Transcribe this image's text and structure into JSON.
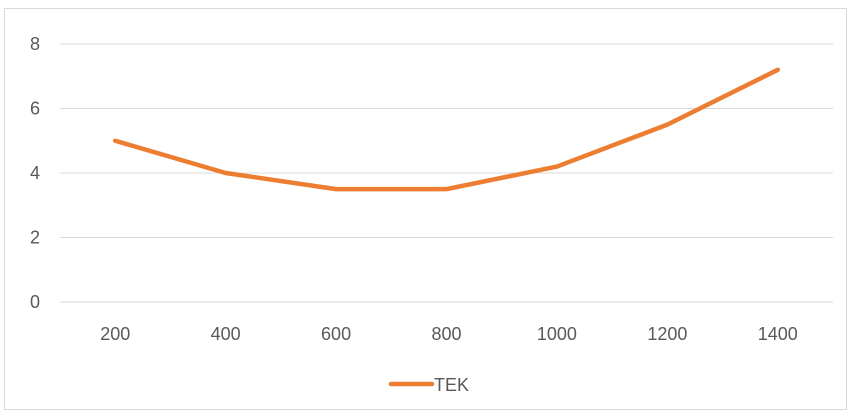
{
  "chart_data": {
    "type": "line",
    "title": "",
    "xlabel": "",
    "ylabel": "",
    "x": [
      200,
      400,
      600,
      800,
      1000,
      1200,
      1400
    ],
    "series": [
      {
        "name": "TEK",
        "values": [
          5,
          4,
          3.5,
          3.5,
          4.2,
          5.5,
          7.2
        ],
        "color": "#ed7d31"
      }
    ],
    "ylim": [
      0,
      8
    ],
    "yticks": [
      0,
      2,
      4,
      6,
      8
    ],
    "grid": true,
    "legend": "bottom"
  }
}
